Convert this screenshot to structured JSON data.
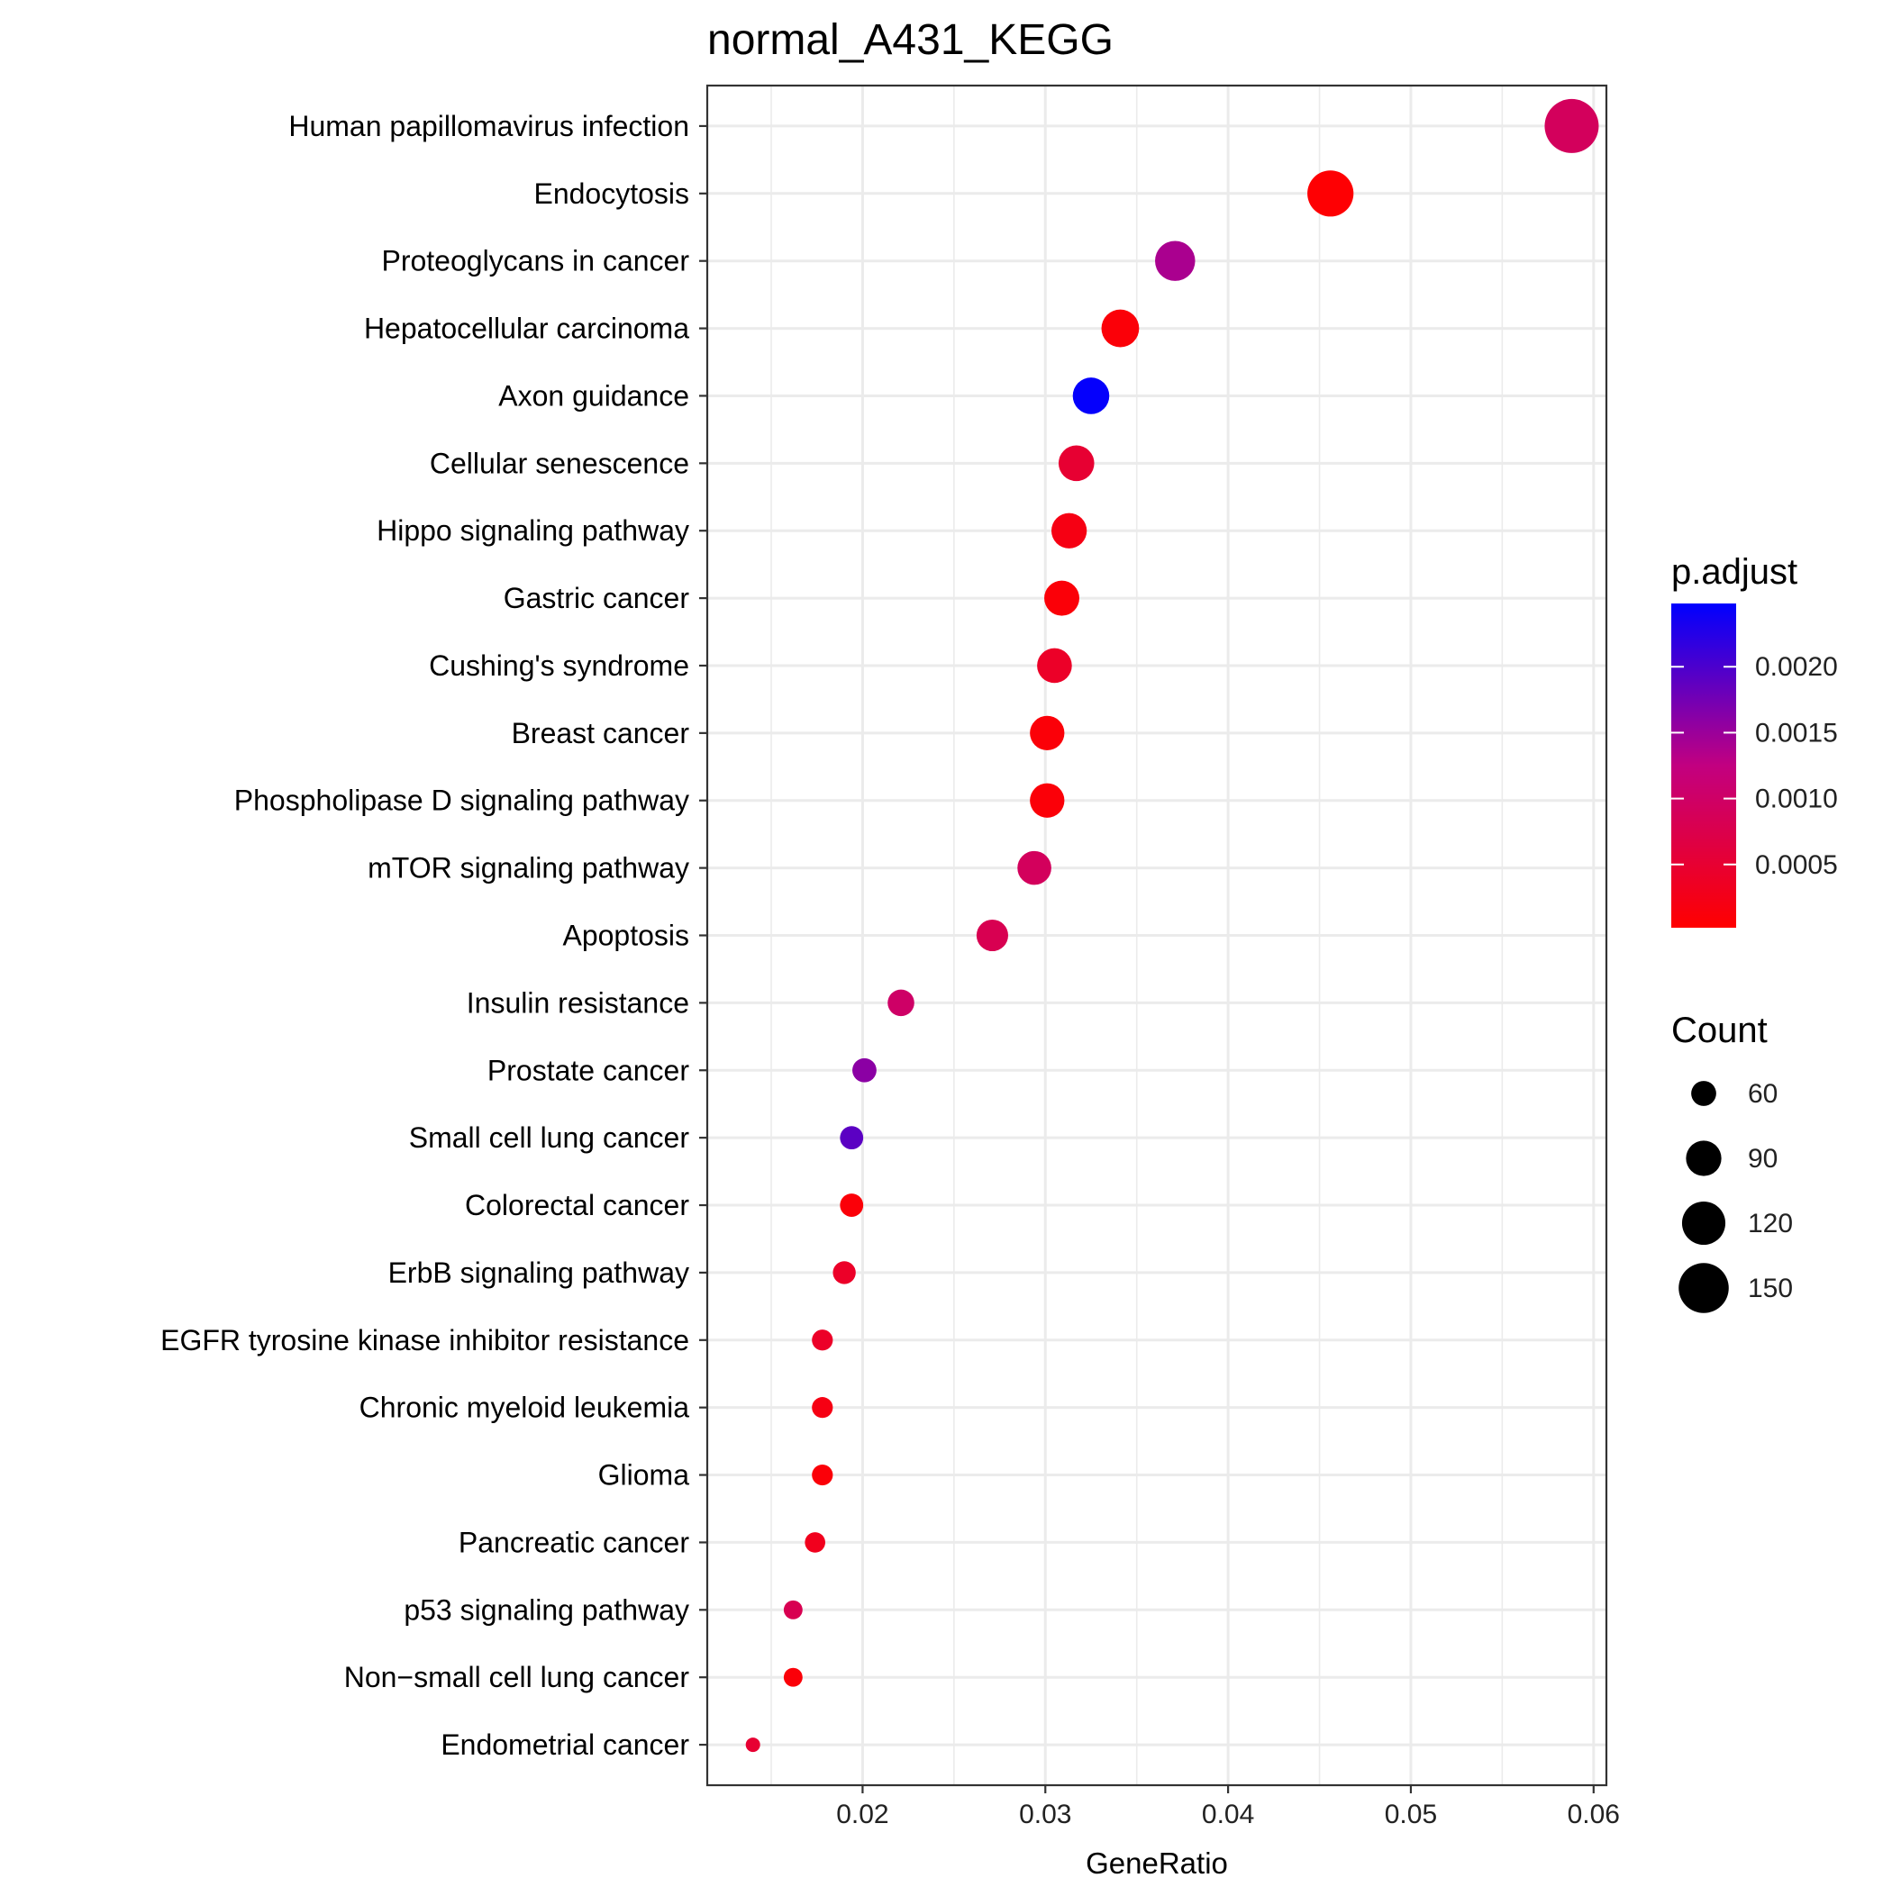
{
  "chart_data": {
    "type": "scatter",
    "title": "normal_A431_KEGG",
    "xlabel": "GeneRatio",
    "ylabel": "",
    "xlim": [
      0.0115,
      0.0607
    ],
    "xticks": [
      0.02,
      0.03,
      0.04,
      0.05,
      0.06
    ],
    "xtick_labels": [
      "0.02",
      "0.03",
      "0.04",
      "0.05",
      "0.06"
    ],
    "grid": true,
    "legend_position": "right",
    "points": [
      {
        "term": "Human papillomavirus infection",
        "gene_ratio": 0.0588,
        "count": 170,
        "p_adjust": 0.0009
      },
      {
        "term": "Endocytosis",
        "gene_ratio": 0.0456,
        "count": 132,
        "p_adjust": 5e-05
      },
      {
        "term": "Proteoglycans in cancer",
        "gene_ratio": 0.0371,
        "count": 107,
        "p_adjust": 0.0014
      },
      {
        "term": "Hepatocellular carcinoma",
        "gene_ratio": 0.0341,
        "count": 98,
        "p_adjust": 0.0001
      },
      {
        "term": "Axon guidance",
        "gene_ratio": 0.0325,
        "count": 94,
        "p_adjust": 0.00245
      },
      {
        "term": "Cellular senescence",
        "gene_ratio": 0.0317,
        "count": 91,
        "p_adjust": 0.0005
      },
      {
        "term": "Hippo signaling pathway",
        "gene_ratio": 0.0313,
        "count": 90,
        "p_adjust": 0.0002
      },
      {
        "term": "Gastric cancer",
        "gene_ratio": 0.0309,
        "count": 89,
        "p_adjust": 0.0001
      },
      {
        "term": "Cushing's syndrome",
        "gene_ratio": 0.0305,
        "count": 88,
        "p_adjust": 0.0004
      },
      {
        "term": "Breast cancer",
        "gene_ratio": 0.0301,
        "count": 87,
        "p_adjust": 0.0001
      },
      {
        "term": "Phospholipase D signaling pathway",
        "gene_ratio": 0.0301,
        "count": 87,
        "p_adjust": 0.0001
      },
      {
        "term": "mTOR signaling pathway",
        "gene_ratio": 0.0294,
        "count": 85,
        "p_adjust": 0.0009
      },
      {
        "term": "Apoptosis",
        "gene_ratio": 0.0271,
        "count": 78,
        "p_adjust": 0.0008
      },
      {
        "term": "Insulin resistance",
        "gene_ratio": 0.0221,
        "count": 64,
        "p_adjust": 0.001
      },
      {
        "term": "Prostate cancer",
        "gene_ratio": 0.0201,
        "count": 58,
        "p_adjust": 0.0016
      },
      {
        "term": "Small cell lung cancer",
        "gene_ratio": 0.0194,
        "count": 56,
        "p_adjust": 0.0019
      },
      {
        "term": "Colorectal cancer",
        "gene_ratio": 0.0194,
        "count": 56,
        "p_adjust": 0.0001
      },
      {
        "term": "ErbB signaling pathway",
        "gene_ratio": 0.019,
        "count": 55,
        "p_adjust": 0.0004
      },
      {
        "term": "EGFR tyrosine kinase inhibitor resistance",
        "gene_ratio": 0.0178,
        "count": 51,
        "p_adjust": 0.0004
      },
      {
        "term": "Chronic myeloid leukemia",
        "gene_ratio": 0.0178,
        "count": 51,
        "p_adjust": 0.0002
      },
      {
        "term": "Glioma",
        "gene_ratio": 0.0178,
        "count": 51,
        "p_adjust": 0.0001
      },
      {
        "term": "Pancreatic cancer",
        "gene_ratio": 0.0174,
        "count": 50,
        "p_adjust": 0.0003
      },
      {
        "term": "p53 signaling pathway",
        "gene_ratio": 0.0162,
        "count": 47,
        "p_adjust": 0.0008
      },
      {
        "term": "Non−small cell lung cancer",
        "gene_ratio": 0.0162,
        "count": 47,
        "p_adjust": 0.0001
      },
      {
        "term": "Endometrial cancer",
        "gene_ratio": 0.014,
        "count": 40,
        "p_adjust": 0.0005
      }
    ],
    "color_legend": {
      "title": "p.adjust",
      "min": 2e-05,
      "max": 0.00248,
      "ticks": [
        0.002,
        0.0015,
        0.001,
        0.0005
      ],
      "tick_labels": [
        "0.0020",
        "0.0015",
        "0.0010",
        "0.0005"
      ],
      "low_color": "#ff0000",
      "high_color": "#0000ff"
    },
    "size_legend": {
      "title": "Count",
      "values": [
        60,
        90,
        120,
        150
      ],
      "labels": [
        "60",
        "90",
        "120",
        "150"
      ]
    },
    "point_size_range": {
      "count_min": 40,
      "count_max": 170
    }
  }
}
